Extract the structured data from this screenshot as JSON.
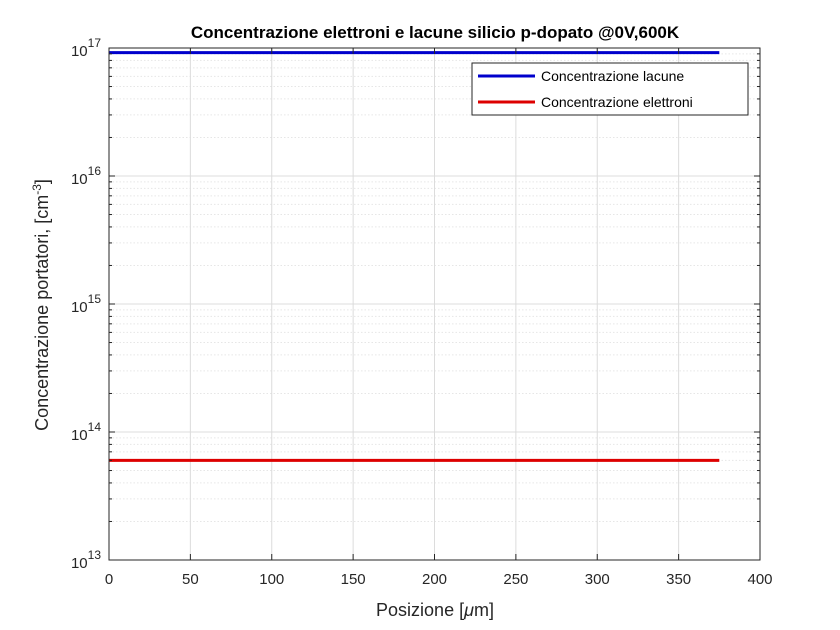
{
  "chart_data": {
    "type": "line",
    "title": "Concentrazione elettroni e lacune silicio p-dopato @0V,600K",
    "xlabel_main": "Posizione [",
    "xlabel_mu": "μ",
    "xlabel_end": "m]",
    "ylabel_main": "Concentrazione portatori, [cm",
    "ylabel_exp": "-3",
    "ylabel_end": "]",
    "x_scale": "linear",
    "y_scale": "log",
    "xlim": [
      0,
      400
    ],
    "ylim": [
      10000000000000.0,
      1e+17
    ],
    "x_ticks": [
      "0",
      "50",
      "100",
      "150",
      "200",
      "250",
      "300",
      "350",
      "400"
    ],
    "x_tick_values": [
      0,
      50,
      100,
      150,
      200,
      250,
      300,
      350,
      400
    ],
    "y_ticks": [
      {
        "base": "10",
        "exp": "13",
        "value": 10000000000000.0
      },
      {
        "base": "10",
        "exp": "14",
        "value": 100000000000000.0
      },
      {
        "base": "10",
        "exp": "15",
        "value": 1000000000000000.0
      },
      {
        "base": "10",
        "exp": "16",
        "value": 1e+16
      },
      {
        "base": "10",
        "exp": "17",
        "value": 1e+17
      }
    ],
    "grid": true,
    "legend_position": "top-right",
    "series": [
      {
        "name": "Concentrazione lacune",
        "color": "#0000cc",
        "x": [
          0,
          375
        ],
        "y": [
          9.2e+16,
          9.2e+16
        ]
      },
      {
        "name": "Concentrazione elettroni",
        "color": "#dd0000",
        "x": [
          0,
          375
        ],
        "y": [
          60000000000000.0,
          60000000000000.0
        ]
      }
    ]
  }
}
